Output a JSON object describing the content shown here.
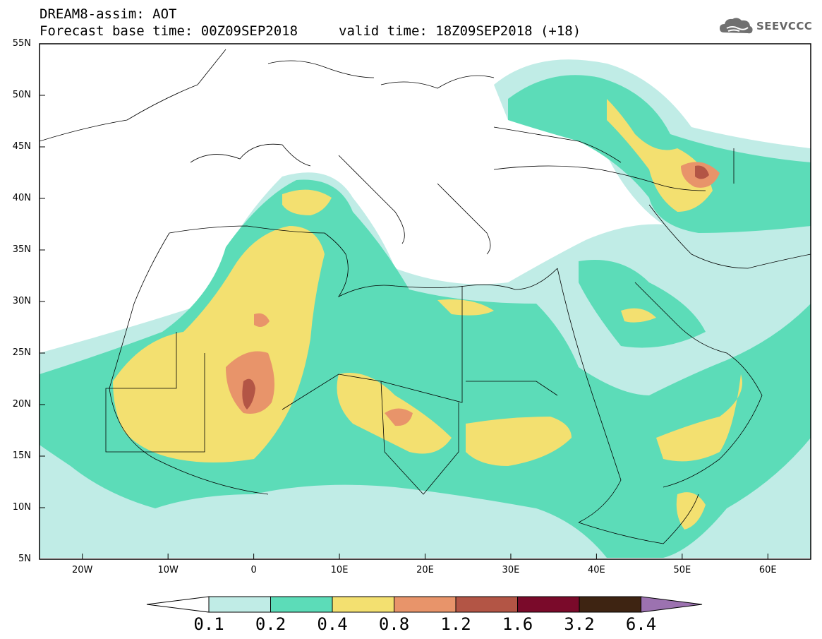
{
  "header": {
    "line1": "DREAM8-assim: AOT",
    "line2_left": "Forecast base time: 00Z09SEP2018",
    "line2_right": "valid time: 18Z09SEP2018 (+18)"
  },
  "logo": {
    "text": "SEEVCCC",
    "icon": "cloud-icon"
  },
  "map": {
    "lat_labels": [
      "55N",
      "50N",
      "45N",
      "40N",
      "35N",
      "30N",
      "25N",
      "20N",
      "15N",
      "10N",
      "5N"
    ],
    "lon_labels": [
      "20W",
      "10W",
      "0",
      "10E",
      "20E",
      "30E",
      "40E",
      "50E",
      "60E"
    ]
  },
  "colorbar": {
    "colors": [
      "#c0ece6",
      "#5cdcb8",
      "#f3e070",
      "#e8946a",
      "#b35545",
      "#7a0a2a",
      "#3e2412",
      "#9c72b0"
    ],
    "labels": [
      "0.1",
      "0.2",
      "0.4",
      "0.8",
      "1.2",
      "1.6",
      "3.2",
      "6.4"
    ]
  }
}
